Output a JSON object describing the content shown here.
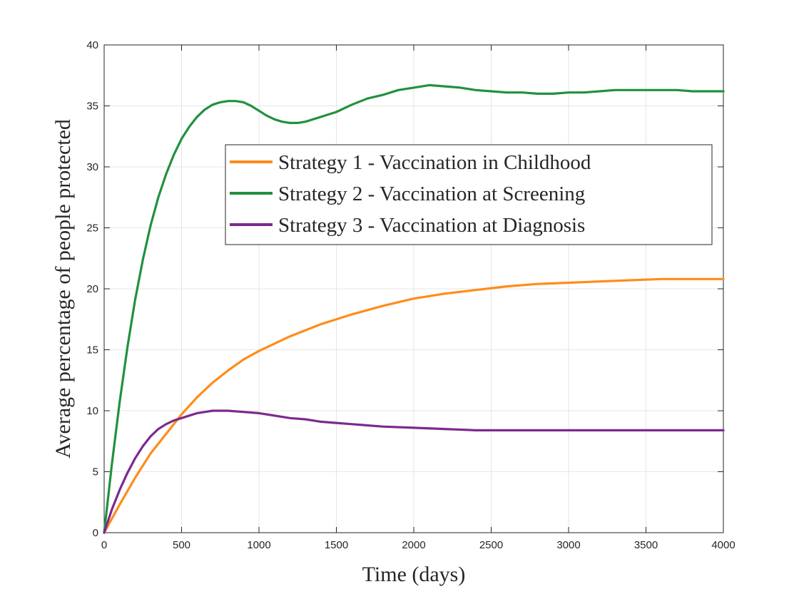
{
  "chart_data": {
    "type": "line",
    "title": "",
    "xlabel": "Time (days)",
    "ylabel": "Average percentage of people protected",
    "xlim": [
      0,
      4000
    ],
    "ylim": [
      0,
      40
    ],
    "xticks": [
      0,
      500,
      1000,
      1500,
      2000,
      2500,
      3000,
      3500,
      4000
    ],
    "yticks": [
      0,
      5,
      10,
      15,
      20,
      25,
      30,
      35,
      40
    ],
    "grid": true,
    "legend_position": "upper-right-inside",
    "series": [
      {
        "name": "Strategy 1 - Vaccination in Childhood",
        "color": "#FF8C1A",
        "x": [
          0,
          100,
          200,
          300,
          400,
          500,
          600,
          700,
          800,
          900,
          1000,
          1200,
          1400,
          1600,
          1800,
          2000,
          2200,
          2400,
          2600,
          2800,
          3000,
          3200,
          3400,
          3600,
          3800,
          4000
        ],
        "y": [
          0,
          2.3,
          4.5,
          6.5,
          8.1,
          9.7,
          11.1,
          12.3,
          13.3,
          14.2,
          14.9,
          16.1,
          17.1,
          17.9,
          18.6,
          19.2,
          19.6,
          19.9,
          20.2,
          20.4,
          20.5,
          20.6,
          20.7,
          20.8,
          20.8,
          20.8
        ]
      },
      {
        "name": "Strategy 2 - Vaccination at Screening",
        "color": "#21913F",
        "x": [
          0,
          50,
          100,
          150,
          200,
          250,
          300,
          350,
          400,
          450,
          500,
          550,
          600,
          650,
          700,
          750,
          800,
          850,
          900,
          950,
          1000,
          1050,
          1100,
          1150,
          1200,
          1250,
          1300,
          1400,
          1500,
          1600,
          1700,
          1800,
          1900,
          2000,
          2100,
          2200,
          2300,
          2400,
          2500,
          2600,
          2700,
          2800,
          2900,
          3000,
          3100,
          3200,
          3300,
          3400,
          3500,
          3600,
          3700,
          3800,
          3900,
          4000
        ],
        "y": [
          0,
          5.6,
          10.7,
          15.2,
          19.1,
          22.4,
          25.2,
          27.5,
          29.4,
          31.0,
          32.3,
          33.3,
          34.1,
          34.7,
          35.1,
          35.3,
          35.4,
          35.4,
          35.3,
          35.0,
          34.6,
          34.2,
          33.9,
          33.7,
          33.6,
          33.6,
          33.7,
          34.1,
          34.5,
          35.1,
          35.6,
          35.9,
          36.3,
          36.5,
          36.7,
          36.6,
          36.5,
          36.3,
          36.2,
          36.1,
          36.1,
          36.0,
          36.0,
          36.1,
          36.1,
          36.2,
          36.3,
          36.3,
          36.3,
          36.3,
          36.3,
          36.2,
          36.2,
          36.2
        ]
      },
      {
        "name": "Strategy 3 - Vaccination at Diagnosis",
        "color": "#7B2A8E",
        "x": [
          0,
          50,
          100,
          150,
          200,
          250,
          300,
          350,
          400,
          450,
          500,
          550,
          600,
          650,
          700,
          750,
          800,
          900,
          1000,
          1100,
          1200,
          1300,
          1400,
          1500,
          1600,
          1800,
          2000,
          2200,
          2400,
          2600,
          2800,
          3000,
          3200,
          3400,
          3600,
          3800,
          4000
        ],
        "y": [
          0,
          1.9,
          3.5,
          4.9,
          6.1,
          7.1,
          7.9,
          8.5,
          8.9,
          9.2,
          9.4,
          9.6,
          9.8,
          9.9,
          10.0,
          10.0,
          10.0,
          9.9,
          9.8,
          9.6,
          9.4,
          9.3,
          9.1,
          9.0,
          8.9,
          8.7,
          8.6,
          8.5,
          8.4,
          8.4,
          8.4,
          8.4,
          8.4,
          8.4,
          8.4,
          8.4,
          8.4
        ]
      }
    ]
  }
}
